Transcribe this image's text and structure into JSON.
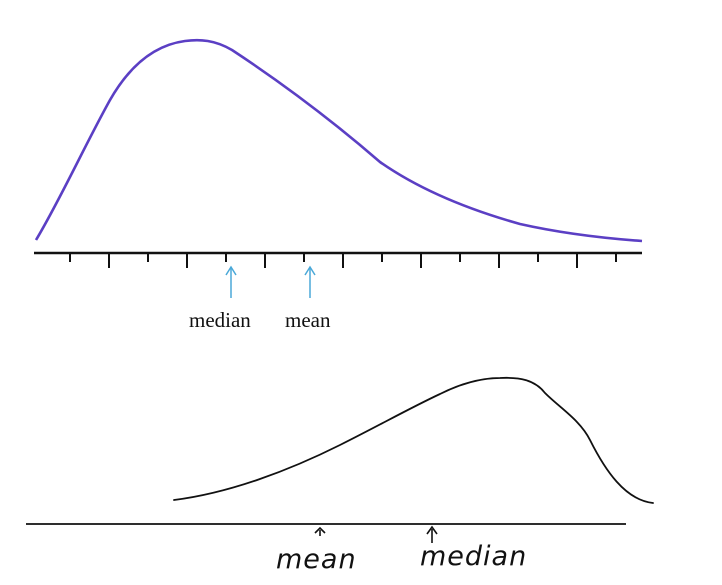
{
  "top_panel": {
    "curve": "right-skewed",
    "curve_color": "#5b3fc4",
    "arrow_color": "#4aa8d8",
    "labels": {
      "median": "median",
      "mean": "mean"
    }
  },
  "bottom_panel": {
    "curve": "left-skewed",
    "labels": {
      "mean": "mean",
      "median": "median"
    }
  }
}
